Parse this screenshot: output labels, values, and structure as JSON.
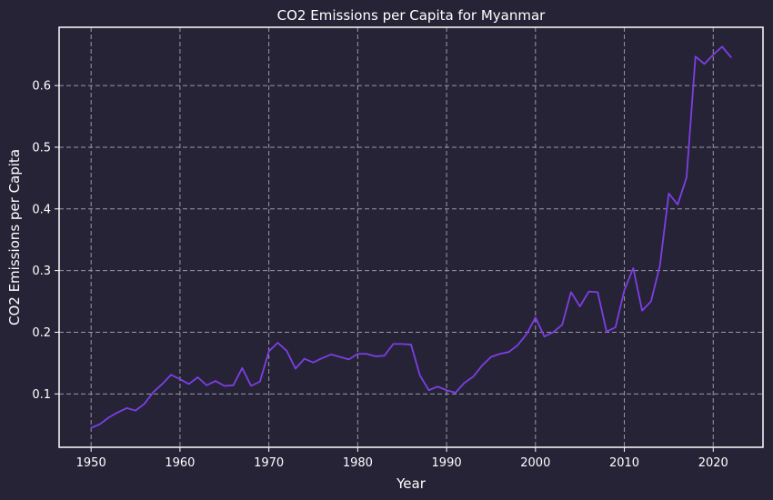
{
  "chart_data": {
    "type": "line",
    "title": "CO2 Emissions per Capita for Myanmar",
    "xlabel": "Year",
    "ylabel": "CO2 Emissions per Capita",
    "xlim": [
      1946.4,
      2025.6
    ],
    "ylim": [
      0.0135,
      0.6945
    ],
    "xticks": [
      1950,
      1960,
      1970,
      1980,
      1990,
      2000,
      2010,
      2020
    ],
    "yticks": [
      0.1,
      0.2,
      0.3,
      0.4,
      0.5,
      0.6
    ],
    "grid": true,
    "series": [
      {
        "color": "#7c3fe4",
        "x": [
          1950,
          1951,
          1952,
          1953,
          1954,
          1955,
          1956,
          1957,
          1958,
          1959,
          1960,
          1961,
          1962,
          1963,
          1964,
          1965,
          1966,
          1967,
          1968,
          1969,
          1970,
          1971,
          1972,
          1973,
          1974,
          1975,
          1976,
          1977,
          1978,
          1979,
          1980,
          1981,
          1982,
          1983,
          1984,
          1985,
          1986,
          1987,
          1988,
          1989,
          1990,
          1991,
          1992,
          1993,
          1994,
          1995,
          1996,
          1997,
          1998,
          1999,
          2000,
          2001,
          2002,
          2003,
          2004,
          2005,
          2006,
          2007,
          2008,
          2009,
          2010,
          2011,
          2012,
          2013,
          2014,
          2015,
          2016,
          2017,
          2018,
          2019,
          2020,
          2021,
          2022
        ],
        "y": [
          0.045,
          0.051,
          0.062,
          0.07,
          0.077,
          0.073,
          0.084,
          0.103,
          0.116,
          0.131,
          0.124,
          0.116,
          0.127,
          0.114,
          0.121,
          0.113,
          0.114,
          0.142,
          0.113,
          0.12,
          0.169,
          0.183,
          0.17,
          0.141,
          0.157,
          0.151,
          0.158,
          0.164,
          0.16,
          0.156,
          0.165,
          0.165,
          0.161,
          0.162,
          0.181,
          0.181,
          0.18,
          0.13,
          0.106,
          0.112,
          0.106,
          0.102,
          0.118,
          0.128,
          0.146,
          0.16,
          0.165,
          0.168,
          0.179,
          0.197,
          0.224,
          0.193,
          0.2,
          0.212,
          0.265,
          0.242,
          0.266,
          0.265,
          0.201,
          0.208,
          0.268,
          0.304,
          0.235,
          0.25,
          0.308,
          0.425,
          0.407,
          0.451,
          0.647,
          0.635,
          0.65,
          0.663,
          0.646
        ]
      }
    ]
  }
}
